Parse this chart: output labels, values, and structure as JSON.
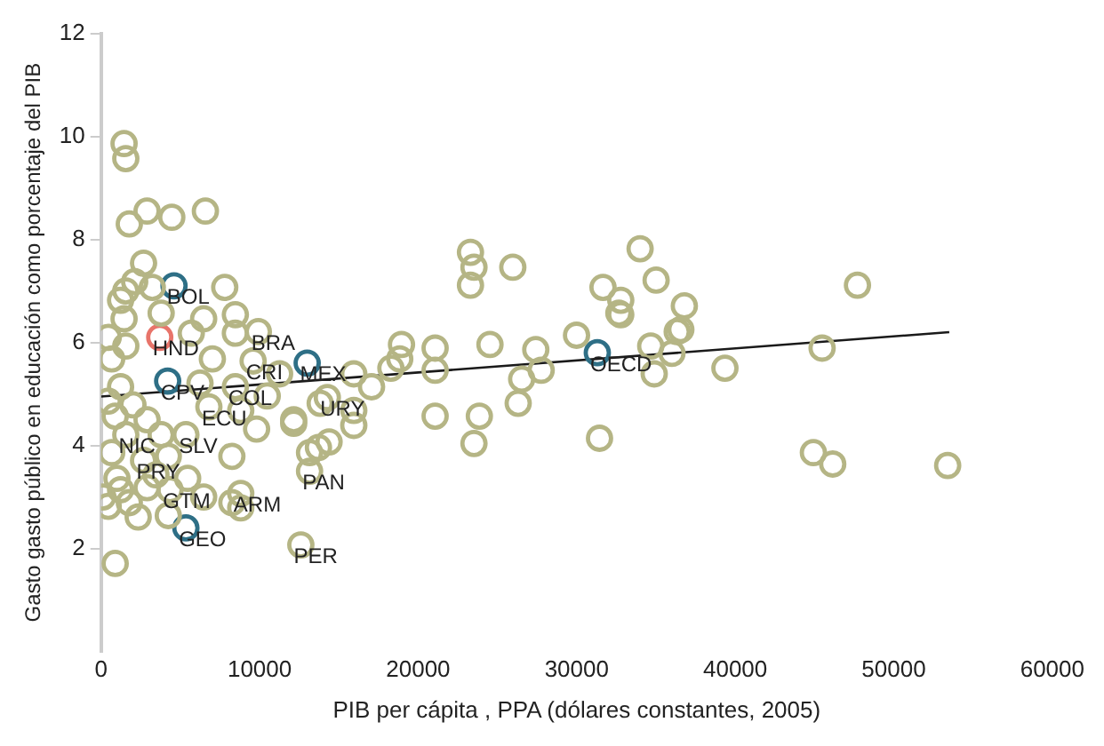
{
  "chart_data": {
    "type": "scatter",
    "xlabel": "PIB per cápita , PPA (dólares constantes, 2005)",
    "ylabel": "Gasto gasto público en educación como porcentaje del PIB",
    "xlim": [
      0,
      60000
    ],
    "xticks": [
      0,
      10000,
      20000,
      30000,
      40000,
      50000,
      60000
    ],
    "ylim": [
      0,
      12
    ],
    "yticks": [
      2,
      4,
      6,
      8,
      10,
      12
    ],
    "grid": false,
    "legend": false,
    "marker": "circle",
    "series": [
      {
        "color": "#b5b585",
        "x": [
          1450,
          1560,
          1780,
          2900,
          4460,
          6580,
          2680,
          1560,
          2120,
          3230,
          1230,
          7800,
          1450,
          3790,
          6470,
          8470,
          450,
          1560,
          5690,
          8470,
          9920,
          670,
          7020,
          9590,
          11260,
          1230,
          6240,
          8470,
          450,
          2010,
          10480,
          890,
          2900,
          6800,
          8810,
          12150,
          14270,
          15940,
          1560,
          3790,
          5350,
          9810,
          13710,
          670,
          2680,
          4240,
          8250,
          1000,
          3460,
          5460,
          13150,
          110,
          1230,
          2900,
          4350,
          6470,
          8810,
          450,
          1780,
          8250,
          2340,
          4240,
          8810,
          12600,
          890,
          23300,
          23520,
          25970,
          23300,
          31660,
          32660,
          18950,
          21070,
          24530,
          27420,
          29990,
          18840,
          18280,
          21070,
          17060,
          15940,
          27760,
          26530,
          26310,
          13820,
          15940,
          12150,
          14380,
          13150,
          21070,
          23860,
          23520,
          31440,
          34000,
          32780,
          35010,
          32780,
          36790,
          47710,
          36340,
          36570,
          34670,
          36010,
          34890,
          39350,
          45480,
          44930,
          46150,
          53400
        ],
        "values": [
          9.86,
          9.57,
          8.3,
          8.55,
          8.43,
          8.55,
          7.54,
          7.0,
          7.18,
          7.07,
          6.82,
          7.07,
          6.46,
          6.57,
          6.46,
          6.54,
          6.1,
          5.93,
          6.18,
          6.18,
          6.21,
          5.68,
          5.68,
          5.64,
          5.39,
          5.14,
          5.21,
          5.14,
          4.86,
          4.79,
          4.96,
          4.57,
          4.5,
          4.75,
          4.68,
          4.5,
          4.93,
          4.68,
          4.21,
          4.21,
          4.21,
          4.32,
          3.96,
          3.86,
          3.71,
          3.79,
          3.79,
          3.36,
          3.43,
          3.36,
          3.5,
          3.0,
          3.14,
          3.18,
          3.14,
          3.0,
          3.07,
          2.82,
          2.89,
          2.89,
          2.61,
          2.64,
          2.79,
          2.07,
          1.71,
          7.75,
          7.46,
          7.46,
          7.11,
          7.07,
          6.57,
          5.96,
          5.89,
          5.96,
          5.86,
          6.14,
          5.68,
          5.5,
          5.46,
          5.14,
          5.39,
          5.46,
          5.29,
          4.82,
          4.82,
          4.39,
          4.43,
          4.07,
          3.86,
          4.57,
          4.57,
          4.04,
          4.14,
          7.82,
          6.82,
          7.21,
          6.54,
          6.71,
          7.11,
          6.21,
          6.25,
          5.93,
          5.79,
          5.39,
          5.5,
          5.89,
          3.86,
          3.64,
          3.61
        ]
      },
      {
        "color": "#2e6f86",
        "x": [
          4600,
          4200,
          13000,
          5350,
          31300
        ],
        "values": [
          7.1,
          5.25,
          5.6,
          2.4,
          5.8
        ]
      },
      {
        "color": "#e8746a",
        "x": [
          3700
        ],
        "values": [
          6.1
        ]
      },
      {
        "type": "line",
        "color": "#1a1a1a",
        "marker": "none",
        "x": [
          0,
          53500
        ],
        "values": [
          4.95,
          6.2
        ]
      }
    ],
    "annotations": [
      {
        "text": "BOL",
        "x": 4600,
        "y": 7.1
      },
      {
        "text": "HND",
        "x": 3700,
        "y": 6.1
      },
      {
        "text": "CPV",
        "x": 4200,
        "y": 5.25
      },
      {
        "text": "NIC",
        "x": 1560,
        "y": 4.21
      },
      {
        "text": "COL",
        "x": 8470,
        "y": 5.14
      },
      {
        "text": "ECU",
        "x": 6800,
        "y": 4.75
      },
      {
        "text": "PRY",
        "x": 2680,
        "y": 3.71
      },
      {
        "text": "SLV",
        "x": 5350,
        "y": 4.21
      },
      {
        "text": "GTM",
        "x": 4350,
        "y": 3.14
      },
      {
        "text": "ARM",
        "x": 8810,
        "y": 3.07
      },
      {
        "text": "GEO",
        "x": 5350,
        "y": 2.4
      },
      {
        "text": "PER",
        "x": 12600,
        "y": 2.07
      },
      {
        "text": "BRA",
        "x": 9920,
        "y": 6.21
      },
      {
        "text": "CRI",
        "x": 9590,
        "y": 5.64
      },
      {
        "text": "MEX",
        "x": 13000,
        "y": 5.6
      },
      {
        "text": "URY",
        "x": 14270,
        "y": 4.93
      },
      {
        "text": "PAN",
        "x": 13150,
        "y": 3.5
      },
      {
        "text": "OECD",
        "x": 31300,
        "y": 5.8
      }
    ]
  }
}
